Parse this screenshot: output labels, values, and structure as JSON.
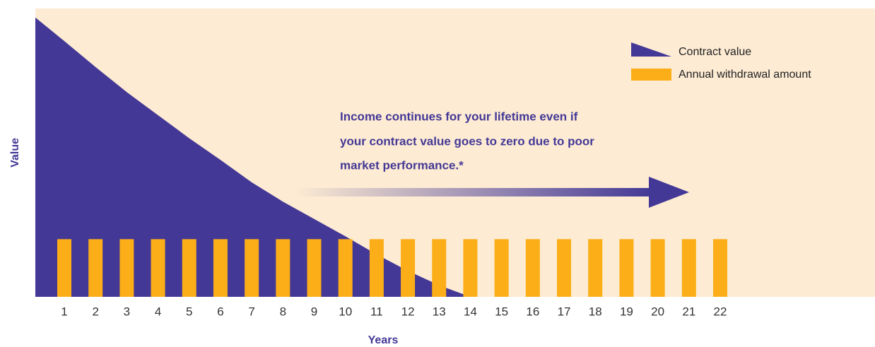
{
  "chart_data": [
    {
      "type": "area",
      "x": [
        0,
        1,
        2,
        3,
        4,
        5,
        6,
        7,
        8,
        9,
        10,
        11,
        12,
        13,
        14
      ],
      "series": [
        {
          "name": "Contract value",
          "color": "#433896",
          "values": [
            97.5,
            88.7,
            79.7,
            71,
            63,
            55,
            47.5,
            39.7,
            33,
            27,
            21,
            14.7,
            9,
            4,
            0
          ]
        }
      ],
      "xlim": [
        0,
        27
      ],
      "ylim": [
        0,
        100
      ]
    },
    {
      "type": "bar",
      "categories": [
        "1",
        "2",
        "3",
        "4",
        "5",
        "6",
        "7",
        "8",
        "9",
        "10",
        "11",
        "12",
        "13",
        "14",
        "15",
        "16",
        "17",
        "18",
        "19",
        "20",
        "21",
        "22"
      ],
      "series": [
        {
          "name": "Annual withdrawal amount",
          "color": "#fbae17",
          "values": [
            20,
            20,
            20,
            20,
            20,
            20,
            20,
            20,
            20,
            20,
            20,
            20,
            20,
            20,
            20,
            20,
            20,
            20,
            20,
            20,
            20,
            20
          ]
        }
      ],
      "ylim": [
        0,
        100
      ],
      "xlabel": "Years",
      "ylabel": "Value",
      "annotation": [
        "Income continues for your lifetime even if",
        "your contract value goes to zero due to poor",
        "market performance.*"
      ],
      "background": "#fdebd3"
    }
  ]
}
